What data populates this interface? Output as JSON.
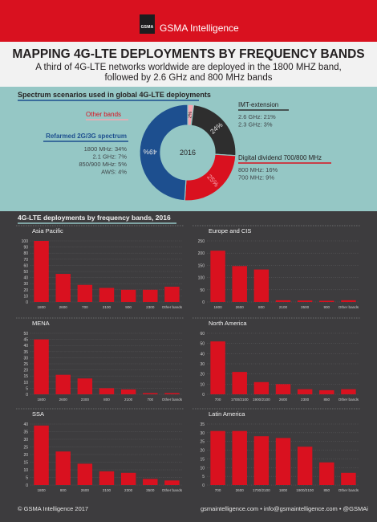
{
  "header": {
    "logo_text": "GSMA",
    "brand": "GSMA Intelligence",
    "title": "MAPPING 4G-LTE DEPLOYMENTS BY FREQUENCY BANDS",
    "subtitle": "A third of 4G-LTE networks worldwide are deployed in the 1800 MHZ band, followed by 2.6 GHz and 800 MHz bands"
  },
  "donut": {
    "section_title": "Spectrum scenarios used in global 4G-LTE deployments",
    "center_label": "2016",
    "colors": {
      "refarmed": "#1d4f8f",
      "other": "#f7a5b0",
      "imt": "#2e2e2e",
      "digital": "#d9111f"
    },
    "segments": [
      {
        "name": "Other bands",
        "value": 2,
        "label": "2%"
      },
      {
        "name": "IMT-extension",
        "value": 24,
        "label": "24%"
      },
      {
        "name": "Digital dividend 700/800 MHz",
        "value": 25,
        "label": "25%"
      },
      {
        "name": "Refarmed 2G/3G spectrum",
        "value": 49,
        "label": "49%"
      }
    ],
    "other_bands": {
      "title": "Other bands"
    },
    "refarmed": {
      "title": "Refarmed 2G/3G spectrum",
      "lines": [
        "1800 MHz: 34%",
        "2.1 GHz: 7%",
        "850/900 MHz: 5%",
        "AWS: 4%"
      ]
    },
    "imt": {
      "title": "IMT-extension",
      "lines": [
        "2.6 GHz: 21%",
        "2.3 GHz: 3%"
      ]
    },
    "digital": {
      "title": "Digital dividend 700/800 MHz",
      "lines": [
        "800 MHz: 16%",
        "700 MHz: 9%"
      ]
    }
  },
  "bars_section_title": "4G-LTE deployments by frequency bands, 2016",
  "chart_data": [
    {
      "type": "bar",
      "title": "Asia Pacific",
      "categories": [
        "1800",
        "2600",
        "700",
        "2100",
        "900",
        "2300",
        "Other bands"
      ],
      "values": [
        100,
        46,
        28,
        23,
        20,
        20,
        25
      ],
      "ylim": [
        0,
        100
      ],
      "ticks": [
        0,
        10,
        20,
        30,
        40,
        50,
        60,
        70,
        80,
        90,
        100
      ]
    },
    {
      "type": "bar",
      "title": "Europe and CIS",
      "categories": [
        "1800",
        "2600",
        "800",
        "2100",
        "3500",
        "900",
        "Other bands"
      ],
      "values": [
        210,
        147,
        133,
        7,
        6,
        5,
        7
      ],
      "ylim": [
        0,
        250
      ],
      "ticks": [
        0,
        50,
        100,
        150,
        200,
        250
      ]
    },
    {
      "type": "bar",
      "title": "MENA",
      "categories": [
        "1800",
        "2600",
        "2300",
        "800",
        "2100",
        "700",
        "Other bands"
      ],
      "values": [
        45,
        16,
        13,
        5,
        4,
        1,
        1
      ],
      "ylim": [
        0,
        50
      ],
      "ticks": [
        0,
        5,
        10,
        15,
        20,
        25,
        30,
        35,
        40,
        45,
        50
      ]
    },
    {
      "type": "bar",
      "title": "North America",
      "categories": [
        "700",
        "1700/2100",
        "1900/2100",
        "2600",
        "2300",
        "850",
        "Other bands"
      ],
      "values": [
        52,
        22,
        12,
        10,
        5,
        4,
        5
      ],
      "ylim": [
        0,
        60
      ],
      "ticks": [
        0,
        10,
        20,
        30,
        40,
        50,
        60
      ]
    },
    {
      "type": "bar",
      "title": "SSA",
      "categories": [
        "1800",
        "800",
        "2600",
        "2100",
        "2300",
        "3500",
        "Other bands"
      ],
      "values": [
        39,
        22,
        14,
        9,
        8,
        4,
        3
      ],
      "ylim": [
        0,
        40
      ],
      "ticks": [
        0,
        5,
        10,
        15,
        20,
        25,
        30,
        35,
        40
      ]
    },
    {
      "type": "bar",
      "title": "Latin America",
      "categories": [
        "700",
        "2600",
        "1700/2100",
        "1800",
        "1900/2100",
        "850",
        "Other bands"
      ],
      "values": [
        31,
        31,
        28,
        27,
        22,
        13,
        7
      ],
      "ylim": [
        0,
        35
      ],
      "ticks": [
        0,
        5,
        10,
        15,
        20,
        25,
        30,
        35
      ]
    }
  ],
  "bar_color": "#d9111f",
  "footer": {
    "copyright": "© GSMA Intelligence 2017",
    "contact": "gsmaintelligence.com • info@gsmaintelligence.com • @GSMAi"
  }
}
